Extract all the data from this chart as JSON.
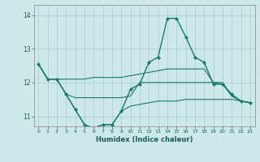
{
  "xlabel": "Humidex (Indice chaleur)",
  "bg_color": "#cce8e8",
  "grid_color": "#aacccc",
  "line_color": "#1a7a6e",
  "x_min": -0.5,
  "x_max": 23.5,
  "y_min": 10.7,
  "y_max": 14.3,
  "yticks": [
    11,
    12,
    13,
    14
  ],
  "xticks": [
    0,
    1,
    2,
    3,
    4,
    5,
    6,
    7,
    8,
    9,
    10,
    11,
    12,
    13,
    14,
    15,
    16,
    17,
    18,
    19,
    20,
    21,
    22,
    23
  ],
  "series": [
    {
      "x": [
        0,
        1,
        2,
        3,
        4,
        5,
        6,
        7,
        8,
        9,
        10,
        11,
        12,
        13,
        14,
        15,
        16,
        17,
        18,
        19,
        20,
        21,
        22,
        23
      ],
      "y": [
        12.55,
        12.1,
        12.1,
        11.65,
        11.2,
        10.75,
        10.65,
        10.75,
        10.75,
        11.15,
        11.8,
        11.95,
        12.6,
        12.75,
        13.9,
        13.9,
        13.35,
        12.75,
        12.6,
        11.95,
        11.95,
        11.65,
        11.45,
        11.4
      ],
      "marker": "D",
      "markersize": 2.0,
      "linewidth": 1.0
    },
    {
      "x": [
        0,
        1,
        2,
        3,
        4,
        5,
        6,
        7,
        8,
        9,
        10,
        11,
        12,
        13,
        14,
        15,
        16,
        17,
        18,
        19,
        20,
        21,
        22,
        23
      ],
      "y": [
        12.55,
        12.1,
        12.1,
        12.1,
        12.1,
        12.1,
        12.15,
        12.15,
        12.15,
        12.15,
        12.2,
        12.25,
        12.3,
        12.35,
        12.4,
        12.4,
        12.4,
        12.4,
        12.4,
        12.0,
        11.95,
        11.6,
        11.45,
        11.4
      ],
      "marker": null,
      "markersize": 0,
      "linewidth": 0.8
    },
    {
      "x": [
        0,
        1,
        2,
        3,
        4,
        5,
        6,
        7,
        8,
        9,
        10,
        11,
        12,
        13,
        14,
        15,
        16,
        17,
        18,
        19,
        20,
        21,
        22,
        23
      ],
      "y": [
        12.55,
        12.1,
        12.1,
        11.65,
        11.55,
        11.55,
        11.55,
        11.55,
        11.55,
        11.55,
        11.6,
        12.0,
        12.0,
        12.0,
        12.0,
        12.0,
        12.0,
        12.0,
        12.0,
        12.0,
        12.0,
        11.6,
        11.45,
        11.4
      ],
      "marker": null,
      "markersize": 0,
      "linewidth": 0.8
    },
    {
      "x": [
        0,
        1,
        2,
        3,
        4,
        5,
        6,
        7,
        8,
        9,
        10,
        11,
        12,
        13,
        14,
        15,
        16,
        17,
        18,
        19,
        20,
        21,
        22,
        23
      ],
      "y": [
        12.55,
        12.1,
        12.1,
        11.65,
        11.2,
        10.75,
        10.65,
        10.75,
        10.75,
        11.15,
        11.3,
        11.35,
        11.4,
        11.45,
        11.45,
        11.45,
        11.5,
        11.5,
        11.5,
        11.5,
        11.5,
        11.5,
        11.45,
        11.4
      ],
      "marker": null,
      "markersize": 0,
      "linewidth": 0.8
    }
  ]
}
